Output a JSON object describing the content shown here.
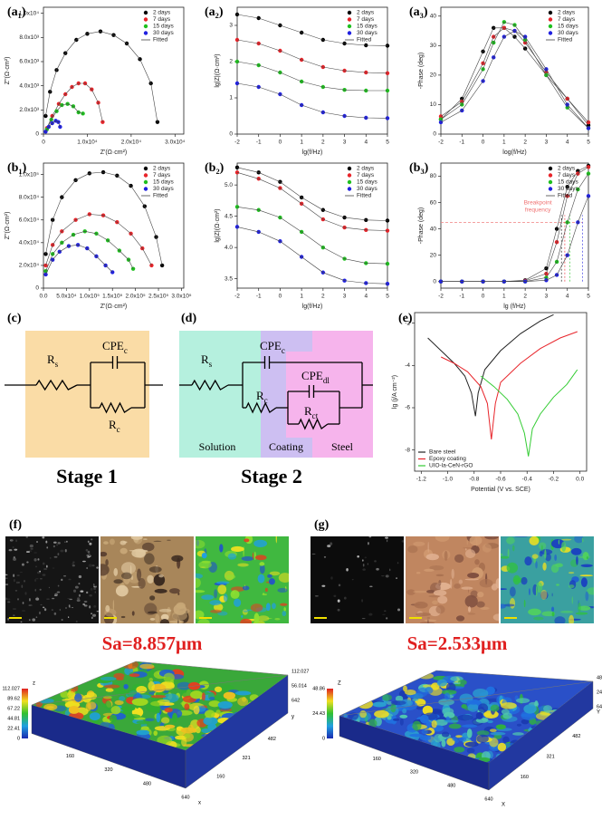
{
  "chart_data": [
    {
      "type": "scatter",
      "panel": "(a₁)",
      "xlabel": "Z'(Ω·cm²)",
      "ylabel": "Z''(Ω·cm²)",
      "fit_label": "Fitted",
      "legend": "upper right",
      "xlim": [
        0,
        32000
      ],
      "xticks": [
        0,
        {
          "value": 10000,
          "label": "1.0x10⁴"
        },
        {
          "value": 20000,
          "label": "2.0x10⁴"
        },
        {
          "value": 30000,
          "label": "3.0x10⁴"
        }
      ],
      "ylim": [
        0,
        10500
      ],
      "yticks": [
        0,
        {
          "value": 2000,
          "label": "2.0x10³"
        },
        {
          "value": 4000,
          "label": "4.0x10³"
        },
        {
          "value": 6000,
          "label": "6.0x10³"
        },
        {
          "value": 8000,
          "label": "8.0x10³"
        },
        {
          "value": 10000,
          "label": "1.0x10⁴"
        }
      ],
      "series": [
        {
          "name": "2 days",
          "color": "#000000",
          "x": [
            500,
            1500,
            3000,
            5000,
            7500,
            10000,
            13000,
            16000,
            19000,
            22000,
            24500,
            26000
          ],
          "values": [
            1500,
            3500,
            5300,
            6700,
            7800,
            8300,
            8500,
            8200,
            7500,
            6200,
            4200,
            1000
          ]
        },
        {
          "name": "7 days",
          "color": "#e8242a",
          "x": [
            800,
            2000,
            3500,
            5000,
            6500,
            8000,
            9500,
            11000,
            12500,
            13500
          ],
          "values": [
            500,
            1500,
            2500,
            3300,
            3900,
            4200,
            4200,
            3700,
            2600,
            1000
          ]
        },
        {
          "name": "15 days",
          "color": "#1fc01f",
          "x": [
            800,
            1800,
            3000,
            4200,
            5500,
            6800,
            8000,
            9000
          ],
          "values": [
            400,
            1200,
            1900,
            2400,
            2500,
            2300,
            1800,
            1700
          ]
        },
        {
          "name": "30 days",
          "color": "#2020e0",
          "x": [
            500,
            1200,
            2000,
            2800,
            3400,
            3800
          ],
          "values": [
            200,
            600,
            900,
            1100,
            1000,
            600
          ]
        }
      ]
    },
    {
      "type": "scatter",
      "panel": "(a₂)",
      "xlabel": "lg(f/Hz)",
      "ylabel": "lg|Z|(Ω·cm²)",
      "fit_label": "Fitted",
      "legend": "upper right",
      "x": [
        -2,
        -1,
        0,
        1,
        2,
        3,
        4,
        5
      ],
      "xlim": [
        -2,
        5
      ],
      "xticks": [
        -2,
        -1,
        0,
        1,
        2,
        3,
        4,
        5
      ],
      "ylim": [
        0,
        3.5
      ],
      "yticks": [
        0,
        1,
        2,
        3
      ],
      "series": [
        {
          "name": "2 days",
          "color": "#000000",
          "values": [
            3.3,
            3.2,
            3.0,
            2.8,
            2.6,
            2.5,
            2.45,
            2.44
          ]
        },
        {
          "name": "7 days",
          "color": "#e8242a",
          "values": [
            2.6,
            2.5,
            2.3,
            2.05,
            1.85,
            1.75,
            1.7,
            1.68
          ]
        },
        {
          "name": "15 days",
          "color": "#1fc01f",
          "values": [
            2.0,
            1.9,
            1.7,
            1.45,
            1.3,
            1.22,
            1.2,
            1.2
          ]
        },
        {
          "name": "30 days",
          "color": "#2020e0",
          "values": [
            1.4,
            1.3,
            1.1,
            0.8,
            0.6,
            0.5,
            0.45,
            0.44
          ]
        }
      ]
    },
    {
      "type": "scatter",
      "panel": "(a₃)",
      "xlabel": "log(f/Hz)",
      "ylabel": "-Phase (deg)",
      "fit_label": "Fitted",
      "legend": "upper right",
      "x": [
        -2,
        -1,
        0,
        0.5,
        1,
        1.5,
        2,
        3,
        4,
        5
      ],
      "xlim": [
        -2,
        5
      ],
      "xticks": [
        -2,
        -1,
        0,
        1,
        2,
        3,
        4,
        5
      ],
      "ylim": [
        0,
        43
      ],
      "yticks": [
        0,
        10,
        20,
        30,
        40
      ],
      "series": [
        {
          "name": "2 days",
          "color": "#000000",
          "values": [
            5,
            12,
            28,
            36,
            36,
            33,
            29,
            20,
            12,
            3
          ]
        },
        {
          "name": "7 days",
          "color": "#e8242a",
          "values": [
            6,
            11,
            24,
            33,
            36,
            35,
            31,
            21,
            12,
            4
          ]
        },
        {
          "name": "15 days",
          "color": "#1fc01f",
          "values": [
            5,
            10,
            22,
            31,
            38,
            37,
            32,
            20,
            9,
            2
          ]
        },
        {
          "name": "30 days",
          "color": "#2020e0",
          "values": [
            4,
            8,
            18,
            26,
            33,
            35,
            33,
            22,
            10,
            2
          ]
        }
      ]
    },
    {
      "type": "scatter",
      "panel": "(b₁)",
      "xlabel": "Z'(Ω·cm²)",
      "ylabel": "Z''(Ω·cm²)",
      "fit_label": "Fitted",
      "legend": "upper right",
      "xlim": [
        0,
        305000
      ],
      "xticks": [
        {
          "value": 0,
          "label": "0.0"
        },
        {
          "value": 50000,
          "label": "5.0x10⁴"
        },
        {
          "value": 100000,
          "label": "1.0x10⁵"
        },
        {
          "value": 150000,
          "label": "1.5x10⁵"
        },
        {
          "value": 200000,
          "label": "2.0x10⁵"
        },
        {
          "value": 250000,
          "label": "2.5x10⁵"
        },
        {
          "value": 300000,
          "label": "3.0x10⁵"
        }
      ],
      "ylim": [
        0,
        110000
      ],
      "yticks": [
        0,
        {
          "value": 20000,
          "label": "2.0x10⁴"
        },
        {
          "value": 40000,
          "label": "4.0x10⁴"
        },
        {
          "value": 60000,
          "label": "6.0x10⁴"
        },
        {
          "value": 80000,
          "label": "8.0x10⁴"
        },
        {
          "value": 100000,
          "label": "1.0x10⁵"
        }
      ],
      "series": [
        {
          "name": "2 days",
          "color": "#000000",
          "x": [
            5000,
            20000,
            40000,
            70000,
            100000,
            130000,
            160000,
            190000,
            220000,
            245000,
            258000
          ],
          "values": [
            30000,
            60000,
            80000,
            95000,
            101000,
            102000,
            99000,
            90000,
            72000,
            45000,
            20000
          ]
        },
        {
          "name": "7 days",
          "color": "#e8242a",
          "x": [
            5000,
            20000,
            40000,
            70000,
            100000,
            130000,
            160000,
            190000,
            215000,
            235000
          ],
          "values": [
            20000,
            38000,
            50000,
            60000,
            65000,
            64000,
            58000,
            48000,
            35000,
            20000
          ]
        },
        {
          "name": "15 days",
          "color": "#1fc01f",
          "x": [
            5000,
            20000,
            40000,
            65000,
            90000,
            115000,
            140000,
            165000,
            185000,
            195000
          ],
          "values": [
            15000,
            30000,
            40000,
            47000,
            50000,
            48000,
            42000,
            33000,
            25000,
            17000
          ]
        },
        {
          "name": "30 days",
          "color": "#2020e0",
          "x": [
            5000,
            20000,
            35000,
            55000,
            75000,
            95000,
            115000,
            135000,
            150000
          ],
          "values": [
            12000,
            25000,
            32000,
            37000,
            38000,
            35000,
            28000,
            20000,
            14000
          ]
        }
      ]
    },
    {
      "type": "scatter",
      "panel": "(b₂)",
      "xlabel": "lg(f/Hz)",
      "ylabel": "lg|Z|(Ω·cm²)",
      "fit_label": "Fitted",
      "legend": "upper right",
      "x": [
        -2,
        -1,
        0,
        1,
        2,
        3,
        4,
        5
      ],
      "xlim": [
        -2,
        5
      ],
      "xticks": [
        -2,
        -1,
        0,
        1,
        2,
        3,
        4,
        5
      ],
      "ylim": [
        3.35,
        5.35
      ],
      "yticks": [
        3.5,
        {
          "value": 4,
          "label": "4.0"
        },
        4.5,
        {
          "value": 5,
          "label": "5.0"
        }
      ],
      "series": [
        {
          "name": "2 days",
          "color": "#000000",
          "values": [
            5.28,
            5.2,
            5.05,
            4.8,
            4.6,
            4.48,
            4.44,
            4.43
          ]
        },
        {
          "name": "7 days",
          "color": "#e8242a",
          "values": [
            5.2,
            5.1,
            4.95,
            4.7,
            4.45,
            4.32,
            4.28,
            4.27
          ]
        },
        {
          "name": "15 days",
          "color": "#1fc01f",
          "values": [
            4.65,
            4.6,
            4.48,
            4.25,
            4.0,
            3.82,
            3.75,
            3.74
          ]
        },
        {
          "name": "30 days",
          "color": "#2020e0",
          "values": [
            4.33,
            4.25,
            4.1,
            3.85,
            3.6,
            3.47,
            3.43,
            3.42
          ]
        }
      ]
    },
    {
      "type": "scatter",
      "panel": "(b₃)",
      "xlabel": "lg (f/Hz)",
      "ylabel": "-Phase (deg)",
      "fit_label": "Fitted",
      "legend": "upper right",
      "x": [
        -2,
        -1,
        0,
        1,
        2,
        3,
        3.5,
        4,
        4.5,
        5
      ],
      "xlim": [
        -2,
        5
      ],
      "xticks": [
        -2,
        -1,
        0,
        1,
        2,
        3,
        4,
        5
      ],
      "ylim": [
        -5,
        90
      ],
      "yticks": [
        0,
        20,
        40,
        60,
        80
      ],
      "annotation": [
        "Breakpoint",
        "frequency"
      ],
      "breakpoint_phase": 45,
      "breakpoints": [
        3.72,
        3.88,
        4.12,
        4.72
      ],
      "series": [
        {
          "name": "2 days",
          "color": "#000000",
          "values": [
            0,
            0,
            0,
            0,
            1,
            10,
            40,
            72,
            84,
            88
          ]
        },
        {
          "name": "7 days",
          "color": "#e8242a",
          "values": [
            0,
            0,
            0,
            0,
            0.5,
            6,
            30,
            65,
            82,
            87
          ]
        },
        {
          "name": "15 days",
          "color": "#1fc01f",
          "values": [
            0,
            0,
            0,
            0,
            0,
            3,
            15,
            45,
            70,
            82
          ]
        },
        {
          "name": "30 days",
          "color": "#2020e0",
          "values": [
            0,
            0,
            0,
            0,
            0,
            1,
            5,
            20,
            45,
            65
          ]
        }
      ]
    },
    {
      "type": "line",
      "panel": "(e)",
      "xlabel": "Potential (V vs. SCE)",
      "ylabel": "lg (j/A cm⁻²)",
      "legend": "lower left",
      "xlim": [
        -1.25,
        0.05
      ],
      "xticks": [
        -1.2,
        {
          "value": -1,
          "label": "-1.0"
        },
        -0.8,
        -0.6,
        -0.4,
        -0.2,
        {
          "value": 0,
          "label": "0.0"
        }
      ],
      "ylim": [
        -9,
        -1.5
      ],
      "yticks": [
        -8,
        -6,
        -4,
        -2
      ],
      "series": [
        {
          "name": "Bare steel",
          "color": "#222222",
          "x": [
            -1.15,
            -1.05,
            -0.95,
            -0.87,
            -0.82,
            -0.79,
            -0.77,
            -0.72,
            -0.6,
            -0.45,
            -0.3,
            -0.2
          ],
          "values": [
            -2.7,
            -3.3,
            -3.9,
            -4.5,
            -5.3,
            -6.4,
            -5.3,
            -4.2,
            -3.3,
            -2.5,
            -1.9,
            -1.6
          ]
        },
        {
          "name": "Epoxy coating",
          "color": "#e8242a",
          "x": [
            -1.05,
            -0.95,
            -0.85,
            -0.75,
            -0.7,
            -0.67,
            -0.64,
            -0.6,
            -0.45,
            -0.3,
            -0.15,
            -0.02
          ],
          "values": [
            -3.6,
            -3.9,
            -4.3,
            -5.0,
            -5.8,
            -7.5,
            -5.8,
            -4.8,
            -3.9,
            -3.2,
            -2.7,
            -2.4
          ]
        },
        {
          "name": "UIO-la-CeN-rGO",
          "color": "#33cc33",
          "x": [
            -0.75,
            -0.65,
            -0.55,
            -0.47,
            -0.42,
            -0.39,
            -0.36,
            -0.3,
            -0.2,
            -0.1,
            -0.02
          ],
          "values": [
            -4.5,
            -5.0,
            -5.6,
            -6.3,
            -7.2,
            -8.3,
            -7.0,
            -6.3,
            -5.5,
            -4.9,
            -4.2
          ]
        }
      ]
    }
  ],
  "circuits": [
    {
      "panel": "(c)",
      "stage": "Stage 1",
      "components": [
        {
          "symbol": "R",
          "sub": "s"
        },
        {
          "symbol": "CPE",
          "sub": "c"
        },
        {
          "symbol": "R",
          "sub": "c"
        }
      ]
    },
    {
      "panel": "(d)",
      "stage": "Stage 2",
      "regions": [
        "Solution",
        "Coating",
        "Steel"
      ],
      "components": [
        {
          "symbol": "R",
          "sub": "s"
        },
        {
          "symbol": "CPE",
          "sub": "c"
        },
        {
          "symbol": "R",
          "sub": "c"
        },
        {
          "symbol": "CPE",
          "sub": "dl"
        },
        {
          "symbol": "R",
          "sub": "ct"
        }
      ]
    }
  ],
  "micrographs": [
    {
      "panel": "(f)",
      "roughness": "Sa=8.857μm",
      "surface": {
        "colorbar": [
          "112.027",
          "89.62",
          "67.22",
          "44.81",
          "22.41",
          "0"
        ],
        "right_axis": [
          "112.027",
          "56.014",
          "642"
        ],
        "y_axis": [
          "482",
          "321",
          "160"
        ],
        "x_axis": [
          "160",
          "320",
          "480",
          "640"
        ],
        "axis_names": [
          "x",
          "y",
          "z"
        ]
      }
    },
    {
      "panel": "(g)",
      "roughness": "Sa=2.533μm",
      "surface": {
        "colorbar": [
          "48.86",
          "24.43",
          "0"
        ],
        "right_axis": [
          "48.86",
          "24.43",
          "642"
        ],
        "y_axis": [
          "482",
          "321",
          "160"
        ],
        "x_axis": [
          "160",
          "320",
          "480",
          "640"
        ],
        "axis_names": [
          "X",
          "Y",
          "Z"
        ]
      }
    }
  ]
}
